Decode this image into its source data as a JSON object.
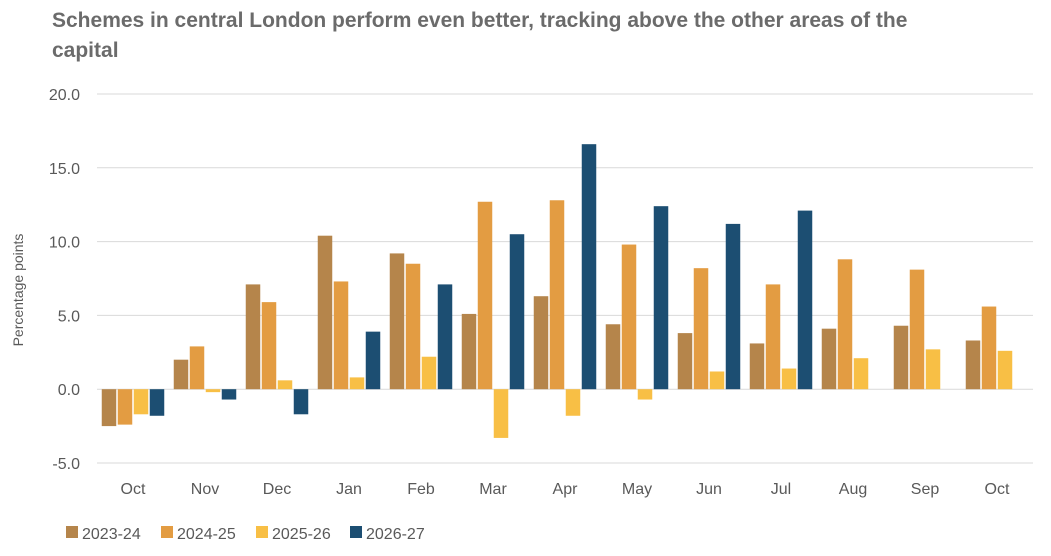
{
  "chart_data": {
    "type": "bar",
    "title": "Schemes in central London perform even better, tracking above the other areas of the capital",
    "xlabel": "",
    "ylabel": "Percentage points",
    "ylim": [
      -5,
      20
    ],
    "yticks": [
      "20.0",
      "15.0",
      "10.0",
      "5.0",
      "0.0",
      "-5.0"
    ],
    "yticks_values": [
      20,
      15,
      10,
      5,
      0,
      -5
    ],
    "grid": true,
    "legend_position": "bottom-left",
    "categories": [
      "Oct",
      "Nov",
      "Dec",
      "Jan",
      "Feb",
      "Mar",
      "Apr",
      "May",
      "Jun",
      "Jul",
      "Aug",
      "Sep",
      "Oct"
    ],
    "series": [
      {
        "name": "2023-24",
        "color": "#B5854B",
        "values": [
          -2.5,
          2.0,
          7.1,
          10.4,
          9.2,
          5.1,
          6.3,
          4.4,
          3.8,
          3.1,
          4.1,
          4.3,
          3.3
        ]
      },
      {
        "name": "2024-25",
        "color": "#E39C42",
        "values": [
          -2.4,
          2.9,
          5.9,
          7.3,
          8.5,
          12.7,
          12.8,
          9.8,
          8.2,
          7.1,
          8.8,
          8.1,
          5.6
        ]
      },
      {
        "name": "2025-26",
        "color": "#F8BF45",
        "values": [
          -1.7,
          -0.2,
          0.6,
          0.8,
          2.2,
          -3.3,
          -1.8,
          -0.7,
          1.2,
          1.4,
          2.1,
          2.7,
          2.6
        ]
      },
      {
        "name": "2026-27",
        "color": "#1C4E72",
        "values": [
          -1.8,
          -0.7,
          -1.7,
          3.9,
          7.1,
          10.5,
          16.6,
          12.4,
          11.2,
          12.1,
          null,
          null,
          null
        ]
      }
    ]
  }
}
